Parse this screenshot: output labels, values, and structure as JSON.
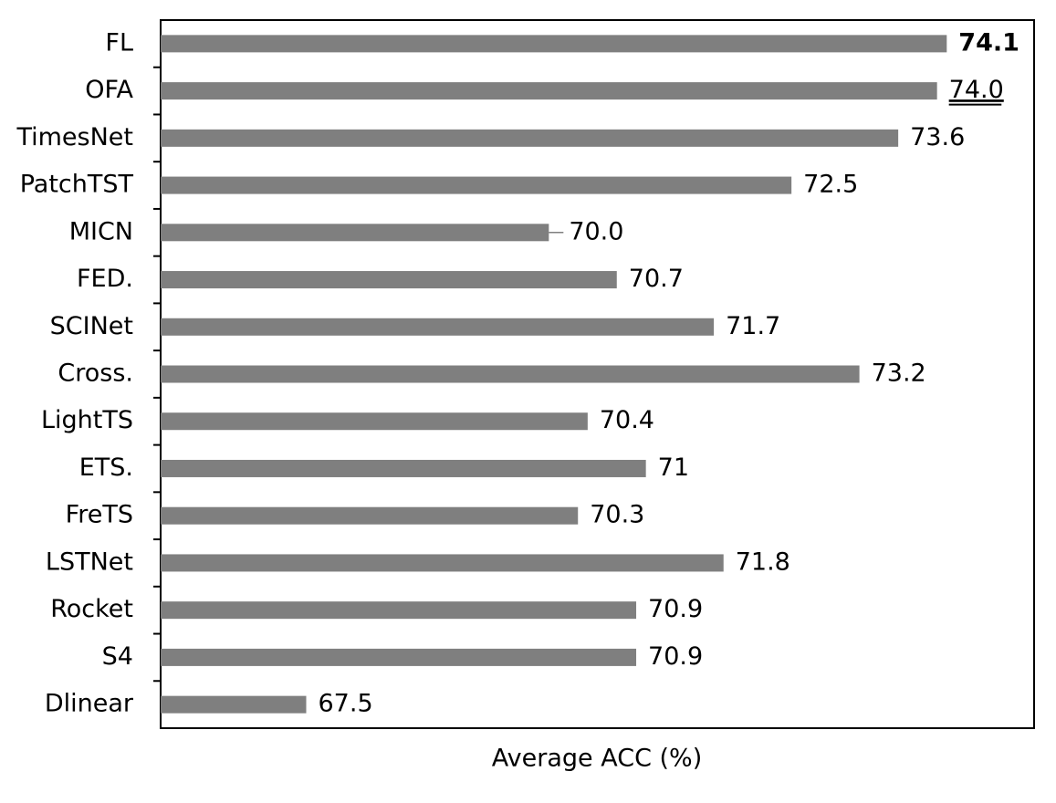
{
  "chart_data": {
    "type": "bar",
    "orientation": "horizontal",
    "title": "",
    "xlabel": "Average ACC (%)",
    "ylabel": "",
    "categories": [
      "FL",
      "OFA",
      "TimesNet",
      "PatchTST",
      "MICN",
      "FED.",
      "SCINet",
      "Cross.",
      "LightTS",
      "ETS.",
      "FreTS",
      "LSTNet",
      "Rocket",
      "S4",
      "Dlinear"
    ],
    "values": [
      74.1,
      74.0,
      73.6,
      72.5,
      70.0,
      70.7,
      71.7,
      73.2,
      70.4,
      71.0,
      70.3,
      71.8,
      70.9,
      70.9,
      67.5
    ],
    "value_labels": [
      "74.1",
      "74.0",
      "73.6",
      "72.5",
      "70.0",
      "70.7",
      "71.7",
      "73.2",
      "70.4",
      "71",
      "70.3",
      "71.8",
      "70.9",
      "70.9",
      "67.5"
    ],
    "xlim": [
      66,
      75
    ],
    "best_index": 0,
    "second_index": 1,
    "grid": false,
    "legend": "none",
    "colors": {
      "bar": "#7f7f7f",
      "axis": "#000000",
      "text": "#000000"
    }
  }
}
